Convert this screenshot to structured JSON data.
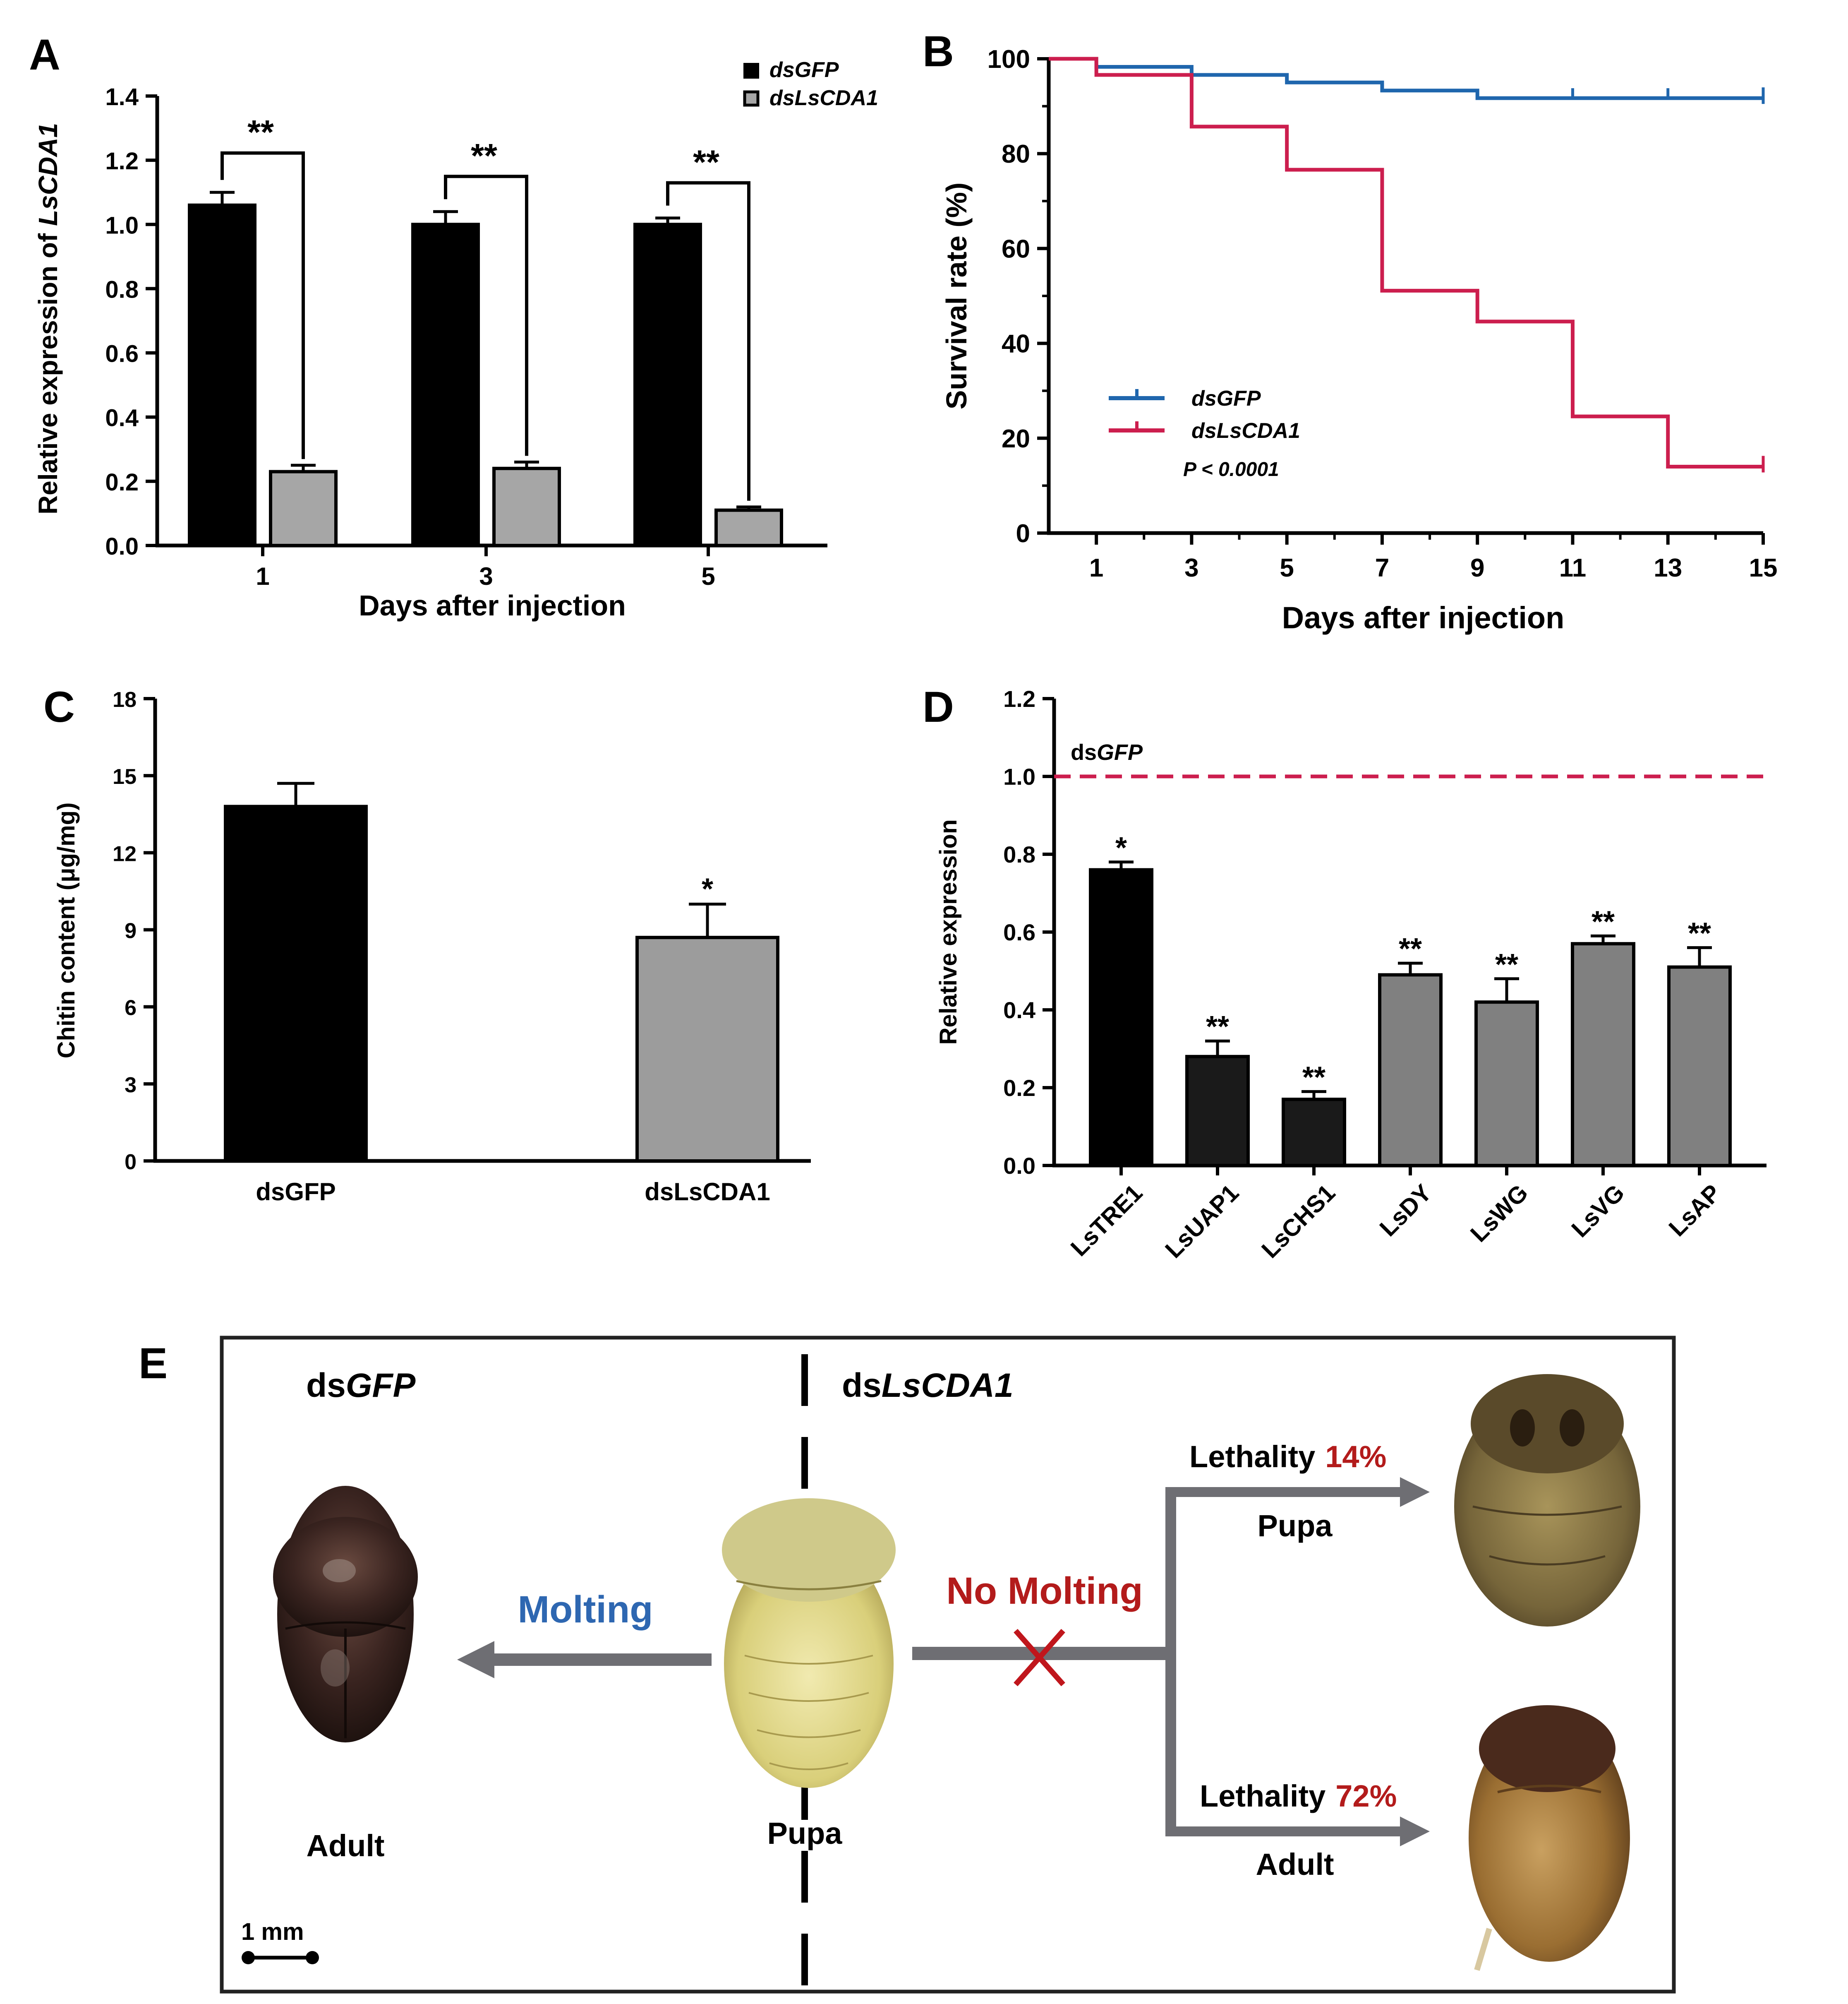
{
  "figure": {
    "panel_labels": {
      "A": "A",
      "B": "B",
      "C": "C",
      "D": "D",
      "E": "E"
    }
  },
  "chart_data": [
    {
      "panel": "A",
      "type": "bar",
      "ylabel_prefix": "Relative expression of ",
      "ylabel_gene": "LsCDA1",
      "xlabel": "Days after injection",
      "categories": [
        "1",
        "3",
        "5"
      ],
      "ylim": [
        0,
        1.4
      ],
      "yticks": [
        "0.0",
        "0.2",
        "0.4",
        "0.6",
        "0.8",
        "1.0",
        "1.2",
        "1.4"
      ],
      "legend": [
        "dsGFP",
        "dsLsCDA1"
      ],
      "legend_position": "top-right",
      "series": [
        {
          "name": "dsGFP",
          "values": [
            1.06,
            1.0,
            1.0
          ],
          "errors": [
            0.04,
            0.04,
            0.02
          ],
          "color": "#000000"
        },
        {
          "name": "dsLsCDA1",
          "values": [
            0.23,
            0.24,
            0.11
          ],
          "errors": [
            0.02,
            0.02,
            0.01
          ],
          "color": "#a6a6a6"
        }
      ],
      "significance": [
        "**",
        "**",
        "**"
      ]
    },
    {
      "panel": "B",
      "type": "line",
      "ylabel": "Survival rate (%)",
      "xlabel": "Days after injection",
      "xlim": [
        0,
        15
      ],
      "ylim": [
        0,
        100
      ],
      "xticks": [
        "1",
        "3",
        "5",
        "7",
        "9",
        "11",
        "13",
        "15"
      ],
      "yticks": [
        "0",
        "20",
        "40",
        "60",
        "80",
        "100"
      ],
      "step": true,
      "series": [
        {
          "name": "dsGFP",
          "color": "#1f66ad",
          "x": [
            0,
            1,
            3,
            5,
            7,
            9,
            11,
            13,
            15
          ],
          "y": [
            100,
            98.3,
            96.6,
            95.0,
            93.3,
            91.7,
            91.7,
            91.7,
            91.7
          ],
          "censor_x": [
            11,
            13
          ]
        },
        {
          "name": "dsLsCDA1",
          "color": "#cc1e4e",
          "x": [
            0,
            1,
            3,
            5,
            7,
            9,
            11,
            13,
            15
          ],
          "y": [
            100,
            96.6,
            85.7,
            76.6,
            51.1,
            44.6,
            24.6,
            14.0,
            14.0
          ],
          "censor_x": []
        }
      ],
      "legend_position": "bottom-left",
      "annotation": "P < 0.0001"
    },
    {
      "panel": "C",
      "type": "bar",
      "ylabel": "Chitin content (μg/mg)",
      "categories": [
        "dsGFP",
        "dsLsCDA1"
      ],
      "values": [
        13.8,
        8.7
      ],
      "errors": [
        0.9,
        1.3
      ],
      "colors": [
        "#000000",
        "#9c9c9c"
      ],
      "ylim": [
        0,
        18
      ],
      "yticks": [
        "0",
        "3",
        "6",
        "9",
        "12",
        "15",
        "18"
      ],
      "significance": [
        "",
        "*"
      ]
    },
    {
      "panel": "D",
      "type": "bar",
      "ylabel": "Relative expression",
      "categories": [
        "LsTRE1",
        "LsUAP1",
        "LsCHS1",
        "LsDY",
        "LsWG",
        "LsVG",
        "LsAP"
      ],
      "values": [
        0.76,
        0.28,
        0.17,
        0.49,
        0.42,
        0.57,
        0.51
      ],
      "errors": [
        0.02,
        0.04,
        0.02,
        0.03,
        0.06,
        0.02,
        0.05
      ],
      "colors": [
        "#000000",
        "#1a1a1a",
        "#1a1a1a",
        "#808080",
        "#808080",
        "#808080",
        "#808080"
      ],
      "significance": [
        "*",
        "**",
        "**",
        "**",
        "**",
        "**",
        "**"
      ],
      "ylim": [
        0,
        1.2
      ],
      "yticks": [
        "0.0",
        "0.2",
        "0.4",
        "0.6",
        "0.8",
        "1.0",
        "1.2"
      ],
      "reference_line": {
        "y": 1.0,
        "label_prefix": "ds",
        "label_gene": "GFP",
        "color": "#cc1e4e"
      }
    }
  ],
  "panel_e": {
    "left_title_prefix": "ds",
    "left_title_gene": "GFP",
    "right_title_prefix": "ds",
    "right_title_gene": "LsCDA1",
    "molting": "Molting",
    "no_molting": "No Molting",
    "adult": "Adult",
    "pupa": "Pupa",
    "lethality": "Lethality",
    "lethality_pupa_pct": "14%",
    "lethality_adult_pct": "72%",
    "branch_pupa": "Pupa",
    "branch_adult": "Adult",
    "scale": "1 mm",
    "colors": {
      "molting": "#2e67b1",
      "no_molting": "#b31b1b",
      "arrow": "#6e6e73",
      "cross": "#c0161c"
    }
  }
}
